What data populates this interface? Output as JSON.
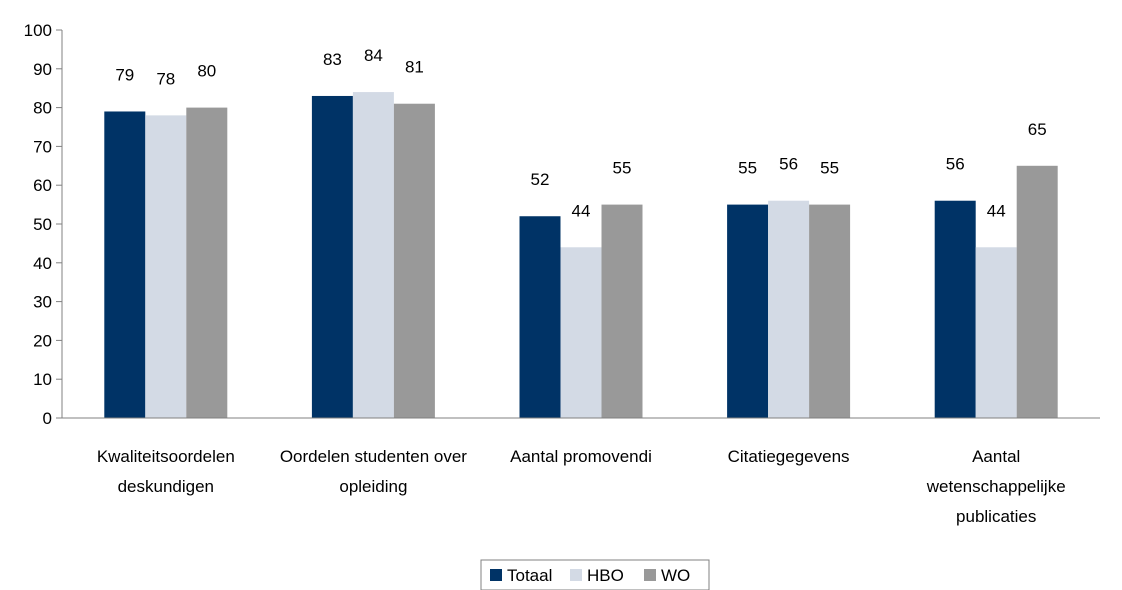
{
  "chart_data": {
    "type": "bar",
    "categories": [
      [
        "Kwaliteitsoordelen",
        "deskundigen"
      ],
      [
        "Oordelen studenten over",
        "opleiding"
      ],
      [
        "Aantal promovendi"
      ],
      [
        "Citatiegegevens"
      ],
      [
        "Aantal",
        "wetenschappelijke",
        "publicaties"
      ]
    ],
    "series": [
      {
        "name": "Totaal",
        "color": "#003366",
        "values": [
          79,
          83,
          52,
          55,
          56
        ]
      },
      {
        "name": "HBO",
        "color": "#d3dae5",
        "values": [
          78,
          84,
          44,
          56,
          44
        ]
      },
      {
        "name": "WO",
        "color": "#999999",
        "values": [
          80,
          81,
          55,
          55,
          65
        ]
      }
    ],
    "ylim": [
      0,
      100
    ],
    "yticks": [
      0,
      10,
      20,
      30,
      40,
      50,
      60,
      70,
      80,
      90,
      100
    ],
    "grid": false,
    "legend_position": "bottom"
  }
}
